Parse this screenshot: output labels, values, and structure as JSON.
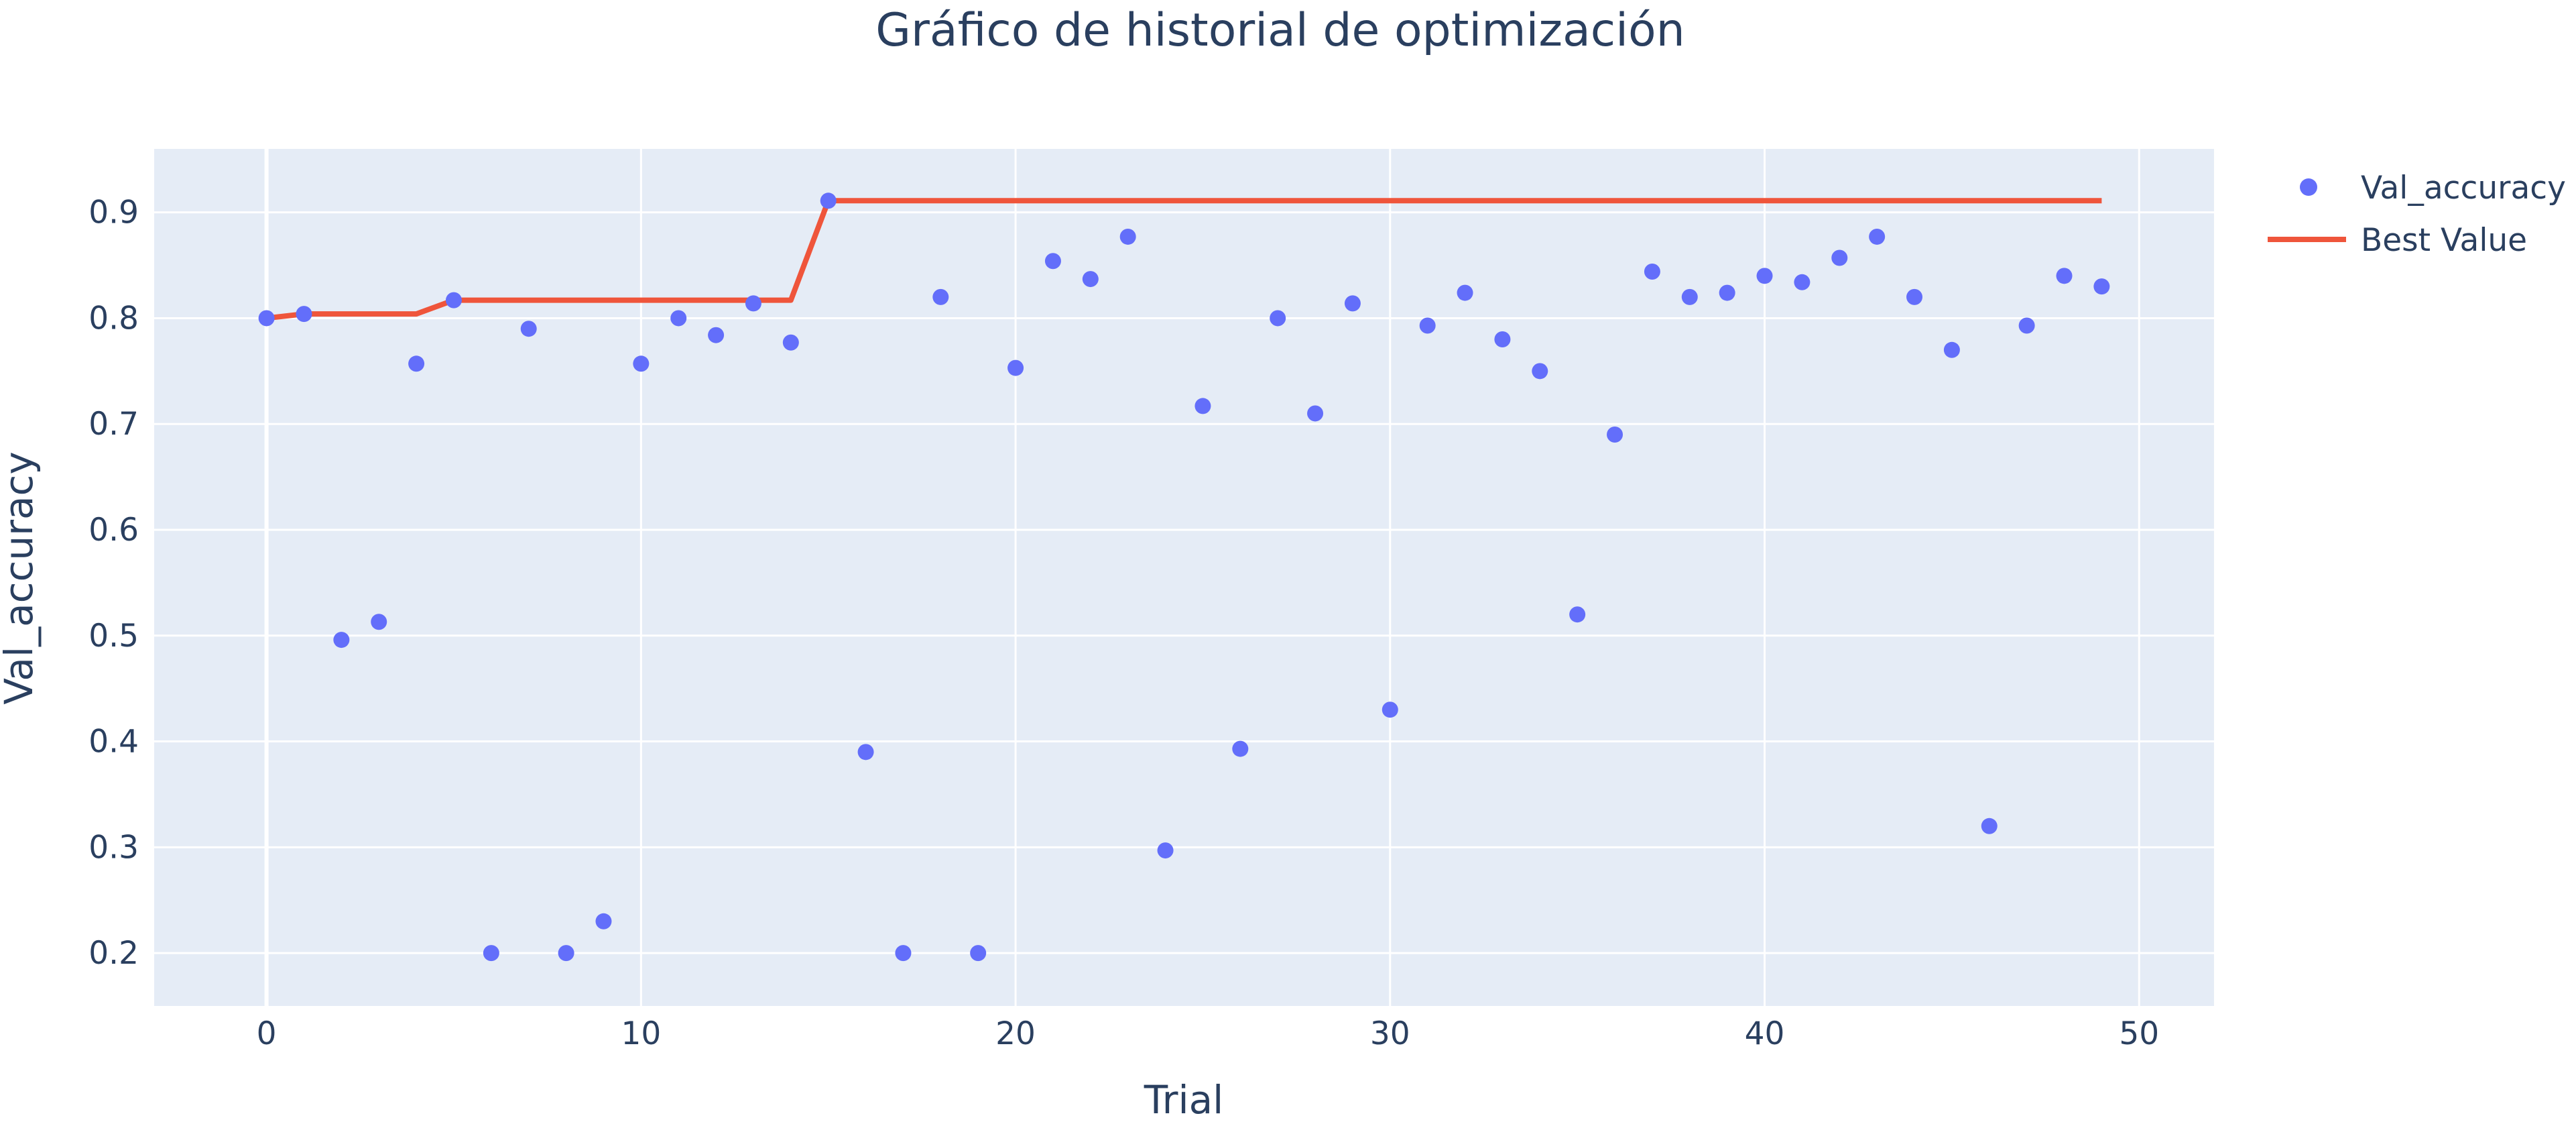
{
  "chart_data": {
    "type": "scatter",
    "title": "Gráfico de historial de optimización",
    "xlabel": "Trial",
    "ylabel": "Val_accuracy",
    "xlim": [
      -3,
      52
    ],
    "ylim": [
      0.15,
      0.96
    ],
    "x_ticks": [
      0,
      10,
      20,
      30,
      40,
      50
    ],
    "y_ticks": [
      0.2,
      0.3,
      0.4,
      0.5,
      0.6,
      0.7,
      0.8,
      0.9
    ],
    "grid": true,
    "legend_position": "top-right",
    "background_color": "#e5ecf6",
    "grid_color": "#ffffff",
    "series": [
      {
        "name": "Val_accuracy",
        "mode": "markers",
        "color": "#636efa",
        "x": [
          0,
          1,
          2,
          3,
          4,
          5,
          6,
          7,
          8,
          9,
          10,
          11,
          12,
          13,
          14,
          15,
          16,
          17,
          18,
          19,
          20,
          21,
          22,
          23,
          24,
          25,
          26,
          27,
          28,
          29,
          30,
          31,
          32,
          33,
          34,
          35,
          36,
          37,
          38,
          39,
          40,
          41,
          42,
          43,
          44,
          45,
          46,
          47,
          48,
          49
        ],
        "y": [
          0.8,
          0.804,
          0.496,
          0.513,
          0.757,
          0.817,
          0.2,
          0.79,
          0.2,
          0.23,
          0.757,
          0.8,
          0.784,
          0.814,
          0.777,
          0.911,
          0.39,
          0.2,
          0.82,
          0.2,
          0.753,
          0.854,
          0.837,
          0.877,
          0.297,
          0.717,
          0.393,
          0.8,
          0.71,
          0.814,
          0.43,
          0.793,
          0.824,
          0.78,
          0.75,
          0.52,
          0.69,
          0.844,
          0.82,
          0.824,
          0.84,
          0.834,
          0.857,
          0.877,
          0.82,
          0.77,
          0.32,
          0.793,
          0.84,
          0.83
        ]
      },
      {
        "name": "Best Value",
        "mode": "lines",
        "color": "#ef553b",
        "x": [
          0,
          1,
          2,
          3,
          4,
          5,
          6,
          7,
          8,
          9,
          10,
          11,
          12,
          13,
          14,
          15,
          16,
          17,
          18,
          19,
          20,
          21,
          22,
          23,
          24,
          25,
          26,
          27,
          28,
          29,
          30,
          31,
          32,
          33,
          34,
          35,
          36,
          37,
          38,
          39,
          40,
          41,
          42,
          43,
          44,
          45,
          46,
          47,
          48,
          49
        ],
        "y": [
          0.8,
          0.804,
          0.804,
          0.804,
          0.804,
          0.817,
          0.817,
          0.817,
          0.817,
          0.817,
          0.817,
          0.817,
          0.817,
          0.817,
          0.817,
          0.911,
          0.911,
          0.911,
          0.911,
          0.911,
          0.911,
          0.911,
          0.911,
          0.911,
          0.911,
          0.911,
          0.911,
          0.911,
          0.911,
          0.911,
          0.911,
          0.911,
          0.911,
          0.911,
          0.911,
          0.911,
          0.911,
          0.911,
          0.911,
          0.911,
          0.911,
          0.911,
          0.911,
          0.911,
          0.911,
          0.911,
          0.911,
          0.911,
          0.911,
          0.911
        ]
      }
    ]
  }
}
